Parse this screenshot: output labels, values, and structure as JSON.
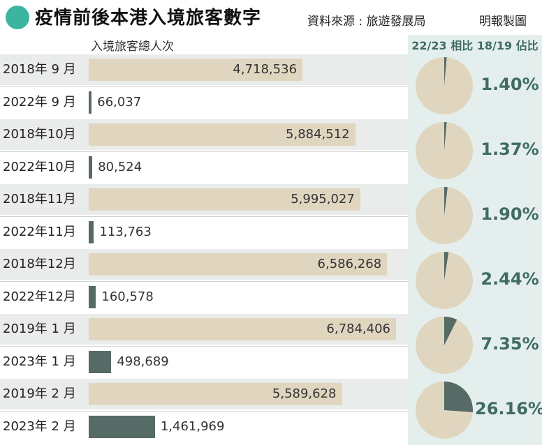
{
  "title": "疫情前後本港入境旅客數字",
  "source": "資料來源 : 旅遊發展局",
  "credit": "明報製圖",
  "subheading": "入境旅客總人次",
  "pie_heading": "22/23 相比 18/19 佔比",
  "colors": {
    "accent": "#3bb5a0",
    "prepandemic": "#e0d6c0",
    "postpandemic": "#566a66",
    "ratio_text": "#3f6b63"
  },
  "chart_data": {
    "type": "bar",
    "orientation": "horizontal",
    "xlim": [
      0,
      6784406
    ],
    "groups": [
      {
        "before_label": "2018年 9 月",
        "before_text": "4,718,536",
        "before": 4718536,
        "after_label": "2022年 9 月",
        "after_text": "66,037",
        "after": 66037,
        "ratio_text": "1.40%",
        "ratio": 1.4
      },
      {
        "before_label": "2018年10月",
        "before_text": "5,884,512",
        "before": 5884512,
        "after_label": "2022年10月",
        "after_text": "80,524",
        "after": 80524,
        "ratio_text": "1.37%",
        "ratio": 1.37
      },
      {
        "before_label": "2018年11月",
        "before_text": "5,995,027",
        "before": 5995027,
        "after_label": "2022年11月",
        "after_text": "113,763",
        "after": 113763,
        "ratio_text": "1.90%",
        "ratio": 1.9
      },
      {
        "before_label": "2018年12月",
        "before_text": "6,586,268",
        "before": 6586268,
        "after_label": "2022年12月",
        "after_text": "160,578",
        "after": 160578,
        "ratio_text": "2.44%",
        "ratio": 2.44
      },
      {
        "before_label": "2019年 1 月",
        "before_text": "6,784,406",
        "before": 6784406,
        "after_label": "2023年 1 月",
        "after_text": "498,689",
        "after": 498689,
        "ratio_text": "7.35%",
        "ratio": 7.35
      },
      {
        "before_label": "2019年 2 月",
        "before_text": "5,589,628",
        "before": 5589628,
        "after_label": "2023年 2 月",
        "after_text": "1,461,969",
        "after": 1461969,
        "ratio_text": "26.16%",
        "ratio": 26.16
      }
    ]
  }
}
